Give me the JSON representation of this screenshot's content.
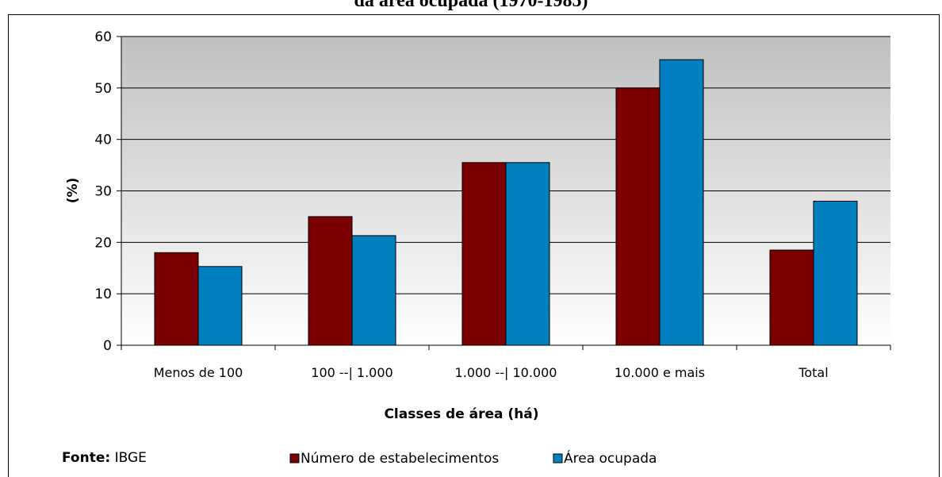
{
  "page": {
    "title": "da área ocupada (1970-1985)"
  },
  "chart_data": {
    "type": "bar",
    "categories": [
      "Menos de 100",
      "100 --| 1.000",
      "1.000 --| 10.000",
      "10.000 e mais",
      "Total"
    ],
    "series": [
      {
        "name": "Número de estabelecimentos",
        "values": [
          18,
          25,
          35.5,
          50,
          18.5
        ],
        "color": "#7b0000"
      },
      {
        "name": "Área ocupada",
        "values": [
          15.3,
          21.3,
          35.5,
          55.5,
          28
        ],
        "color": "#0080c0"
      }
    ],
    "title": "",
    "xlabel": "Classes de área (há)",
    "ylabel": "(%)",
    "ylim": [
      0,
      60
    ],
    "yticks": [
      0,
      10,
      20,
      30,
      40,
      50,
      60
    ],
    "grid": true,
    "legend_position": "bottom",
    "plot_background": "gradient gray to white",
    "source_label": "Fonte:",
    "source_value": " IBGE"
  }
}
